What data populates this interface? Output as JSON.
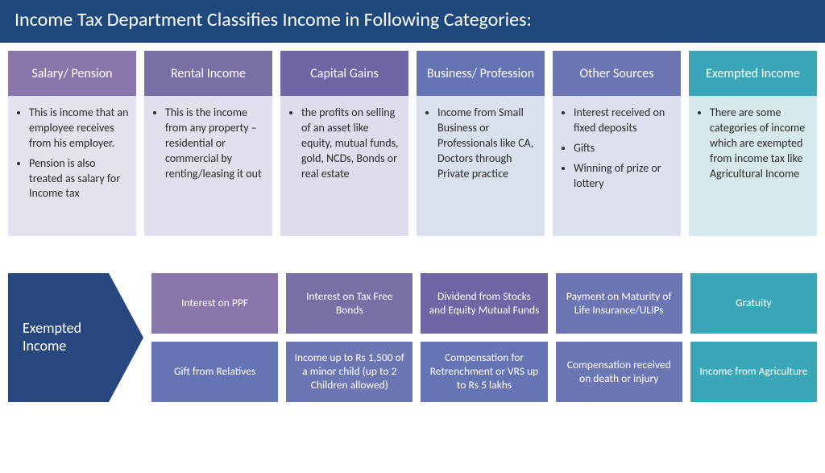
{
  "colors": {
    "titlebar": "#1f497d",
    "text_dark": "#2b2b2b"
  },
  "title": "Income Tax Department Classifies Income in Following Categories:",
  "categories": [
    {
      "name": "salary-pension",
      "title": "Salary/ Pension",
      "header_bg": "#8977ab",
      "body_bg": "#e5e1ee",
      "body_text_color": "#2b2b2b",
      "bullets": [
        "This is income that an employee receives from his employer.",
        "Pension is also treated as salary for Income tax"
      ]
    },
    {
      "name": "rental-income",
      "title": "Rental Income",
      "header_bg": "#7a6ea7",
      "body_bg": "#e2dfee",
      "body_text_color": "#2b2b2b",
      "bullets": [
        "This is the income from any property – residential or commercial by renting/leasing it out"
      ]
    },
    {
      "name": "capital-gains",
      "title": "Capital Gains",
      "header_bg": "#6f66a5",
      "body_bg": "#dfdcee",
      "body_text_color": "#2b2b2b",
      "bullets": [
        "the profits on selling of an asset like equity, mutual funds, gold, NCDs, Bonds or real estate"
      ]
    },
    {
      "name": "business-profession",
      "title": "Business/ Profession",
      "header_bg": "#6575b3",
      "body_bg": "#dbe0ef",
      "body_text_color": "#2b2b2b",
      "bullets": [
        "Income from Small Business or Professionals like CA, Doctors through Private practice"
      ]
    },
    {
      "name": "other-sources",
      "title": "Other Sources",
      "header_bg": "#6b76b3",
      "body_bg": "#dde0ef",
      "body_text_color": "#2b2b2b",
      "bullets": [
        "Interest received on fixed deposits",
        "Gifts",
        "Winning of prize or lottery"
      ]
    },
    {
      "name": "exempted-income",
      "title": "Exempted Income",
      "header_bg": "#3aa7b8",
      "body_bg": "#d7e9ec",
      "body_text_color": "#2b2b2b",
      "bullets": [
        "There are some categories of income which are exempted from income tax like Agricultural Income"
      ]
    }
  ],
  "exempted": {
    "arrow_label": "Exempted Income",
    "arrow_fill": "#27477e",
    "tiles": [
      {
        "label": "Interest on PPF",
        "bg": "#8977ab"
      },
      {
        "label": "Interest  on Tax Free Bonds",
        "bg": "#7a6ea7"
      },
      {
        "label": "Dividend from Stocks and Equity Mutual Funds",
        "bg": "#6f66a5"
      },
      {
        "label": "Payment on Maturity of Life Insurance/ULIPs",
        "bg": "#6b76b3"
      },
      {
        "label": "Gratuity",
        "bg": "#3aa7b8"
      },
      {
        "label": "Gift from Relatives",
        "bg": "#6575b3"
      },
      {
        "label": "Income up to Rs 1,500 of a minor child (up to 2 Children allowed)",
        "bg": "#6b76b3"
      },
      {
        "label": "Compensation for Retrenchment or VRS up to Rs 5 lakhs",
        "bg": "#6575b3"
      },
      {
        "label": "Compensation received on death or injury",
        "bg": "#6b76b3"
      },
      {
        "label": "Income from Agriculture",
        "bg": "#3aa7b8"
      }
    ]
  }
}
